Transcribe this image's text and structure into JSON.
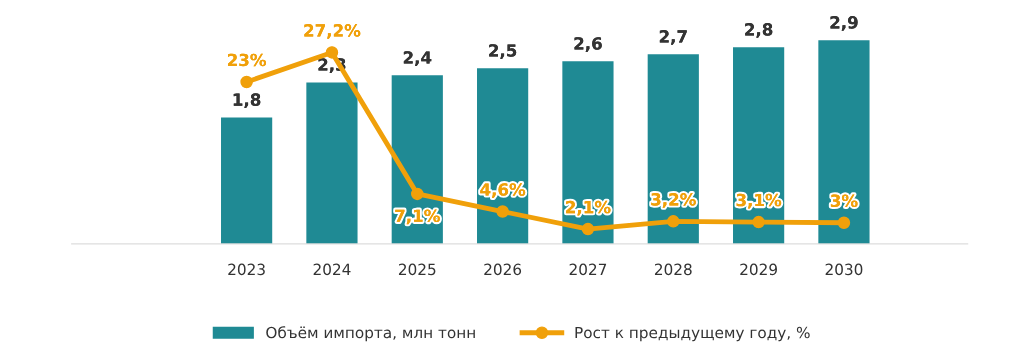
{
  "chart_data": {
    "type": "bar",
    "categories": [
      "2023",
      "2024",
      "2025",
      "2026",
      "2027",
      "2028",
      "2029",
      "2030"
    ],
    "series": [
      {
        "name": "Объём импорта, млн тонн",
        "color": "#1f8a94",
        "values": [
          1.8,
          2.3,
          2.4,
          2.5,
          2.6,
          2.7,
          2.8,
          2.9
        ],
        "value_labels": [
          "1,8",
          "2,3",
          "2,4",
          "2,5",
          "2,6",
          "2,7",
          "2,8",
          "2,9"
        ]
      },
      {
        "name": "Рост к предыдущему году, %",
        "type": "line",
        "axis": "y2",
        "color": "#f0a00a",
        "marker": "circle",
        "values": [
          23,
          27.2,
          7.1,
          4.6,
          2.1,
          3.2,
          3.1,
          3
        ],
        "value_labels": [
          "23%",
          "27,2%",
          "7,1%",
          "4,6%",
          "2,1%",
          "3,2%",
          "3,1%",
          "3%"
        ]
      }
    ],
    "tick_labels": "x",
    "legend": "bottom"
  }
}
